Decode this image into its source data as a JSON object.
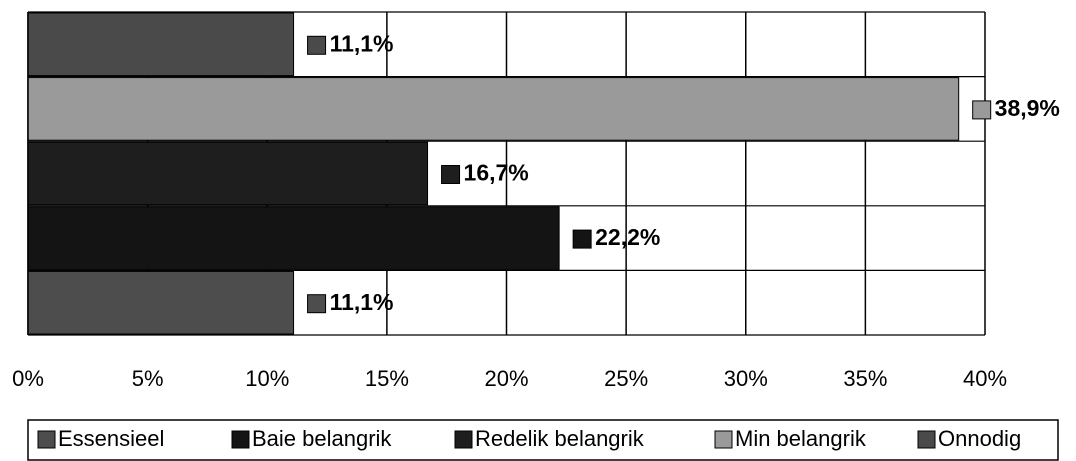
{
  "chart_data": {
    "type": "bar",
    "orientation": "horizontal",
    "series": [
      {
        "name": "Essensieel",
        "color": "#4d4d4d",
        "values": [
          11.1
        ],
        "value_labels": [
          "11,1%"
        ]
      },
      {
        "name": "Baie belangrik",
        "color": "#141414",
        "values": [
          22.2
        ],
        "value_labels": [
          "22,2%"
        ]
      },
      {
        "name": "Redelik belangrik",
        "color": "#1e1e1e",
        "values": [
          16.7
        ],
        "value_labels": [
          "16,7%"
        ]
      },
      {
        "name": "Min belangrik",
        "color": "#9a9a9a",
        "values": [
          38.9
        ],
        "value_labels": [
          "38,9%"
        ]
      },
      {
        "name": "Onnodig",
        "color": "#4a4a4a",
        "values": [
          11.1
        ],
        "value_labels": [
          "11,1%"
        ]
      }
    ],
    "xlim": [
      0,
      40
    ],
    "xticks": [
      {
        "value": 0,
        "label": "0%"
      },
      {
        "value": 5,
        "label": "5%"
      },
      {
        "value": 10,
        "label": "10%"
      },
      {
        "value": 15,
        "label": "15%"
      },
      {
        "value": 20,
        "label": "20%"
      },
      {
        "value": 25,
        "label": "25%"
      },
      {
        "value": 30,
        "label": "30%"
      },
      {
        "value": 35,
        "label": "35%"
      },
      {
        "value": 40,
        "label": "40%"
      }
    ],
    "grid": true,
    "legend": "bottom"
  }
}
